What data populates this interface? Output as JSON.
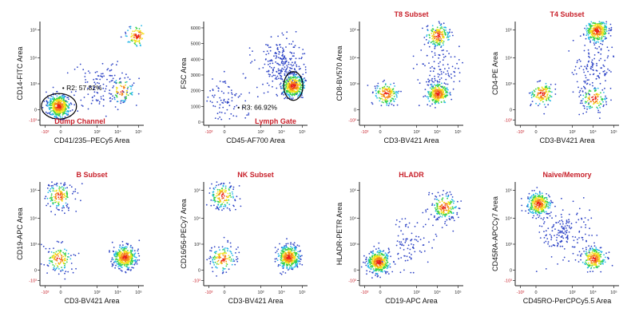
{
  "colors": {
    "title_red": "#c8202a",
    "neg_tick_red": "#c8202a",
    "axis": "#222222",
    "cloud_low": "#2f45c6",
    "cloud_mid1": "#27b8e8",
    "cloud_mid2": "#3ad24a",
    "cloud_mid3": "#f2e21a",
    "cloud_mid4": "#f5861c",
    "cloud_high": "#e8201a"
  },
  "chart_data": [
    {
      "type": "scatter",
      "title": "Dump Channel",
      "xlabel": "CD41/235–PECy5 Area",
      "ylabel": "CD14-FITC Area",
      "x_scale": "log",
      "y_scale": "log",
      "x_ticks": [
        "-10³",
        "0",
        "10³",
        "10⁴",
        "10⁵"
      ],
      "y_ticks": [
        "-10³",
        "0",
        "10³",
        "10⁴",
        "10⁵"
      ],
      "x_neg_tick": "-10³",
      "y_neg_tick": "-10³",
      "gate": {
        "label": "R2: 57.82%",
        "shape": "ellipse"
      },
      "populations": [
        {
          "x": 0.0,
          "y": 0.0,
          "weight": 0.55,
          "density": "high"
        },
        {
          "x": 4.0,
          "y": 1.0,
          "weight": 0.1,
          "density": "medium"
        },
        {
          "x": 5.0,
          "y": 4.5,
          "weight": 0.12,
          "density": "high"
        },
        {
          "x": 2.5,
          "y": 1.2,
          "weight": 0.12,
          "density": "low"
        }
      ]
    },
    {
      "type": "scatter",
      "title": "Lymph Gate",
      "xlabel": "CD45-AF700 Area",
      "ylabel": "FSC Area",
      "x_scale": "log",
      "y_scale": "linear",
      "x_ticks": [
        "-10³",
        "0",
        "10³",
        "10⁴",
        "10⁵"
      ],
      "y_ticks": [
        "0",
        "1000",
        "2000",
        "3000",
        "4000",
        "5000",
        "6000"
      ],
      "x_neg_tick": "-10³",
      "y_neg_tick": "",
      "gate": {
        "label": "R3: 66.92%",
        "shape": "ellipse"
      },
      "populations": [
        {
          "x": 4.5,
          "y": 2300,
          "weight": 0.45,
          "density": "high"
        },
        {
          "x": 3.8,
          "y": 3800,
          "weight": 0.25,
          "density": "low"
        },
        {
          "x": 0.0,
          "y": 1400,
          "weight": 0.1,
          "density": "low"
        }
      ]
    },
    {
      "type": "scatter",
      "title": "T8 Subset",
      "xlabel": "CD3-BV421 Area",
      "ylabel": "CD8-BV570 Area",
      "x_scale": "log",
      "y_scale": "log",
      "x_ticks": [
        "-10³",
        "0",
        "10³",
        "10⁴",
        "10⁵"
      ],
      "y_ticks": [
        "-10³",
        "0",
        "10³",
        "10⁴",
        "10⁵"
      ],
      "x_neg_tick": "-10³",
      "y_neg_tick": "-10³",
      "populations": [
        {
          "x": 0.5,
          "y": 0.8,
          "weight": 0.18,
          "density": "high"
        },
        {
          "x": 3.8,
          "y": 0.8,
          "weight": 0.3,
          "density": "high"
        },
        {
          "x": 3.8,
          "y": 4.5,
          "weight": 0.2,
          "density": "high"
        },
        {
          "x": 3.8,
          "y": 2.5,
          "weight": 0.1,
          "density": "low"
        }
      ]
    },
    {
      "type": "scatter",
      "title": "T4 Subset",
      "xlabel": "CD3-BV421 Area",
      "ylabel": "CD4-PE Area",
      "x_scale": "log",
      "y_scale": "log",
      "x_ticks": [
        "-10³",
        "0",
        "10³",
        "10⁴",
        "10⁵"
      ],
      "y_ticks": [
        "-10³",
        "0",
        "10³",
        "10⁴",
        "10⁵"
      ],
      "x_neg_tick": "-10³",
      "y_neg_tick": "-10³",
      "populations": [
        {
          "x": 0.5,
          "y": 0.8,
          "weight": 0.15,
          "density": "high"
        },
        {
          "x": 4.0,
          "y": 4.8,
          "weight": 0.35,
          "density": "high"
        },
        {
          "x": 3.8,
          "y": 0.5,
          "weight": 0.15,
          "density": "medium"
        },
        {
          "x": 3.8,
          "y": 2.8,
          "weight": 0.12,
          "density": "low"
        }
      ]
    },
    {
      "type": "scatter",
      "title": "B Subset",
      "xlabel": "CD3-BV421 Area",
      "ylabel": "CD19-APC Area",
      "x_scale": "log",
      "y_scale": "log",
      "x_ticks": [
        "-10³",
        "0",
        "10³",
        "10⁴",
        "10⁵"
      ],
      "y_ticks": [
        "-10³",
        "0",
        "10³",
        "10⁴",
        "10⁵"
      ],
      "x_neg_tick": "-10³",
      "y_neg_tick": "-10³",
      "populations": [
        {
          "x": 0.0,
          "y": 4.5,
          "weight": 0.18,
          "density": "medium"
        },
        {
          "x": 0.0,
          "y": 0.5,
          "weight": 0.15,
          "density": "medium"
        },
        {
          "x": 4.2,
          "y": 0.6,
          "weight": 0.45,
          "density": "high"
        }
      ]
    },
    {
      "type": "scatter",
      "title": "NK Subset",
      "xlabel": "CD3-BV421 Area",
      "ylabel": "CD16/56-PECy7 Area",
      "x_scale": "log",
      "y_scale": "log",
      "x_ticks": [
        "-10³",
        "0",
        "10³",
        "10⁴",
        "10⁵"
      ],
      "y_ticks": [
        "-10³",
        "0",
        "10³",
        "10⁴",
        "10⁵"
      ],
      "x_neg_tick": "-10³",
      "y_neg_tick": "-10³",
      "populations": [
        {
          "x": 0.0,
          "y": 4.5,
          "weight": 0.18,
          "density": "medium"
        },
        {
          "x": 0.0,
          "y": 0.5,
          "weight": 0.15,
          "density": "medium"
        },
        {
          "x": 4.2,
          "y": 0.6,
          "weight": 0.45,
          "density": "high"
        }
      ]
    },
    {
      "type": "scatter",
      "title": "HLADR",
      "xlabel": "CD19-APC Area",
      "ylabel": "HLADR-PETR Area",
      "x_scale": "log",
      "y_scale": "log",
      "x_ticks": [
        "-10³",
        "0",
        "10³",
        "10⁴",
        "10⁵"
      ],
      "y_ticks": [
        "-10³",
        "0",
        "10³",
        "10⁴",
        "10⁵"
      ],
      "x_neg_tick": "-10³",
      "y_neg_tick": "-10³",
      "populations": [
        {
          "x": 0.0,
          "y": 0.3,
          "weight": 0.45,
          "density": "high"
        },
        {
          "x": 4.2,
          "y": 3.8,
          "weight": 0.22,
          "density": "medium"
        },
        {
          "x": 2.0,
          "y": 1.5,
          "weight": 0.1,
          "density": "low"
        }
      ]
    },
    {
      "type": "scatter",
      "title": "Naïve/Memory",
      "xlabel": "CD45RO-PerCPCy5.5 Area",
      "ylabel": "CD45RA-APCCy7 Area",
      "x_scale": "log",
      "y_scale": "log",
      "x_ticks": [
        "-10³",
        "0",
        "10³",
        "10⁴",
        "10⁵"
      ],
      "y_ticks": [
        "-10³",
        "0",
        "10³",
        "10⁴",
        "10⁵"
      ],
      "x_neg_tick": "-10³",
      "y_neg_tick": "-10³",
      "populations": [
        {
          "x": 0.3,
          "y": 4.0,
          "weight": 0.35,
          "density": "high"
        },
        {
          "x": 3.8,
          "y": 0.5,
          "weight": 0.25,
          "density": "high"
        },
        {
          "x": 2.0,
          "y": 2.2,
          "weight": 0.2,
          "density": "low"
        }
      ]
    }
  ]
}
